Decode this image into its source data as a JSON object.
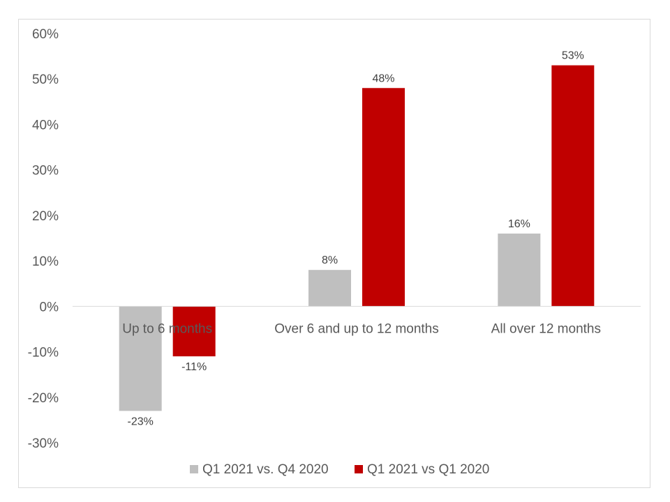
{
  "chart_data": {
    "type": "bar",
    "categories": [
      "Up to 6 months",
      "Over 6 and up to 12 months",
      "All over 12 months"
    ],
    "series": [
      {
        "name": "Q1 2021 vs. Q4 2020",
        "color": "#bfbfbf",
        "values": [
          -23,
          8,
          16
        ],
        "labels": [
          "-23%",
          "8%",
          "16%"
        ]
      },
      {
        "name": "Q1 2021 vs Q1 2020",
        "color": "#c00000",
        "values": [
          -11,
          48,
          53
        ],
        "labels": [
          "-11%",
          "48%",
          "53%"
        ]
      }
    ],
    "ylim": [
      -30,
      60
    ],
    "yticks": [
      60,
      50,
      40,
      30,
      20,
      10,
      0,
      -10,
      -20,
      -30
    ],
    "ytick_labels": [
      "60%",
      "50%",
      "40%",
      "30%",
      "20%",
      "10%",
      "0%",
      "-10%",
      "-20%",
      "-30%"
    ],
    "grid": false,
    "legend_position": "bottom",
    "title": "",
    "xlabel": "",
    "ylabel": ""
  }
}
